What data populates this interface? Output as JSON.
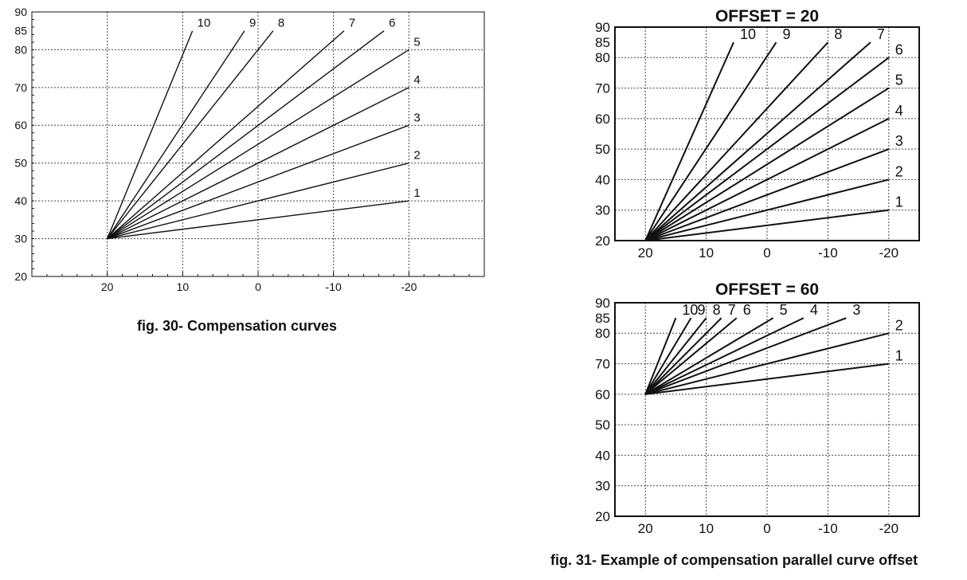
{
  "captions": {
    "fig30": "fig. 30- Compensation curves",
    "fig31": "fig. 31- Example of compensation parallel curve offset"
  },
  "colors": {
    "line": "#111111",
    "grid": "#444444",
    "background": "#ffffff"
  },
  "chart_data": [
    {
      "id": "fig30",
      "type": "line",
      "title": "",
      "xlabel": "",
      "ylabel": "",
      "x_reversed": true,
      "xlim": [
        30,
        -30
      ],
      "ylim": [
        20,
        90
      ],
      "xticks": [
        20,
        10,
        0,
        -10,
        -20
      ],
      "yticks": [
        20,
        30,
        40,
        50,
        60,
        70,
        80,
        85,
        90
      ],
      "grid": true,
      "series": [
        {
          "name": "1",
          "x": [
            20,
            -20
          ],
          "y": [
            30,
            40
          ]
        },
        {
          "name": "2",
          "x": [
            20,
            -20
          ],
          "y": [
            30,
            50
          ]
        },
        {
          "name": "3",
          "x": [
            20,
            -20
          ],
          "y": [
            30,
            60
          ]
        },
        {
          "name": "4",
          "x": [
            20,
            -20
          ],
          "y": [
            30,
            70
          ]
        },
        {
          "name": "5",
          "x": [
            20,
            -20
          ],
          "y": [
            30,
            80
          ]
        },
        {
          "name": "6",
          "x": [
            20,
            -16.7
          ],
          "y": [
            30,
            85
          ]
        },
        {
          "name": "7",
          "x": [
            20,
            -11.4
          ],
          "y": [
            30,
            85
          ]
        },
        {
          "name": "8",
          "x": [
            20,
            -2
          ],
          "y": [
            30,
            85
          ]
        },
        {
          "name": "9",
          "x": [
            20,
            1.8
          ],
          "y": [
            30,
            85
          ]
        },
        {
          "name": "10",
          "x": [
            20,
            8.7
          ],
          "y": [
            30,
            85
          ]
        }
      ]
    },
    {
      "id": "fig31a",
      "type": "line",
      "title": "OFFSET = 20",
      "xlabel": "",
      "ylabel": "",
      "x_reversed": true,
      "xlim": [
        25,
        -25
      ],
      "ylim": [
        20,
        90
      ],
      "xticks": [
        20,
        10,
        0,
        -10,
        -20
      ],
      "yticks": [
        20,
        30,
        40,
        50,
        60,
        70,
        80,
        85,
        90
      ],
      "grid": true,
      "series": [
        {
          "name": "1",
          "x": [
            20,
            -20
          ],
          "y": [
            20,
            30
          ]
        },
        {
          "name": "2",
          "x": [
            20,
            -20
          ],
          "y": [
            20,
            40
          ]
        },
        {
          "name": "3",
          "x": [
            20,
            -20
          ],
          "y": [
            20,
            50
          ]
        },
        {
          "name": "4",
          "x": [
            20,
            -20
          ],
          "y": [
            20,
            60
          ]
        },
        {
          "name": "5",
          "x": [
            20,
            -20
          ],
          "y": [
            20,
            70
          ]
        },
        {
          "name": "6",
          "x": [
            20,
            -20
          ],
          "y": [
            20,
            80
          ]
        },
        {
          "name": "7",
          "x": [
            20,
            -17
          ],
          "y": [
            20,
            85
          ]
        },
        {
          "name": "8",
          "x": [
            20,
            -10
          ],
          "y": [
            20,
            85
          ]
        },
        {
          "name": "9",
          "x": [
            20,
            -1.5
          ],
          "y": [
            20,
            85
          ]
        },
        {
          "name": "10",
          "x": [
            20,
            5.5
          ],
          "y": [
            20,
            85
          ]
        }
      ]
    },
    {
      "id": "fig31b",
      "type": "line",
      "title": "OFFSET = 60",
      "xlabel": "",
      "ylabel": "",
      "x_reversed": true,
      "xlim": [
        25,
        -25
      ],
      "ylim": [
        20,
        90
      ],
      "xticks": [
        20,
        10,
        0,
        -10,
        -20
      ],
      "yticks": [
        20,
        30,
        40,
        50,
        60,
        70,
        80,
        85,
        90
      ],
      "grid": true,
      "series": [
        {
          "name": "1",
          "x": [
            20,
            -20
          ],
          "y": [
            60,
            70
          ]
        },
        {
          "name": "2",
          "x": [
            20,
            -20
          ],
          "y": [
            60,
            80
          ]
        },
        {
          "name": "3",
          "x": [
            20,
            -13
          ],
          "y": [
            60,
            85
          ]
        },
        {
          "name": "4",
          "x": [
            20,
            -6
          ],
          "y": [
            60,
            85
          ]
        },
        {
          "name": "5",
          "x": [
            20,
            -1
          ],
          "y": [
            60,
            85
          ]
        },
        {
          "name": "6",
          "x": [
            20,
            5
          ],
          "y": [
            60,
            85
          ]
        },
        {
          "name": "7",
          "x": [
            20,
            7.5
          ],
          "y": [
            60,
            85
          ]
        },
        {
          "name": "8",
          "x": [
            20,
            10
          ],
          "y": [
            60,
            85
          ]
        },
        {
          "name": "9",
          "x": [
            20,
            12.5
          ],
          "y": [
            60,
            85
          ]
        },
        {
          "name": "10",
          "x": [
            20,
            15
          ],
          "y": [
            60,
            85
          ]
        }
      ]
    }
  ]
}
